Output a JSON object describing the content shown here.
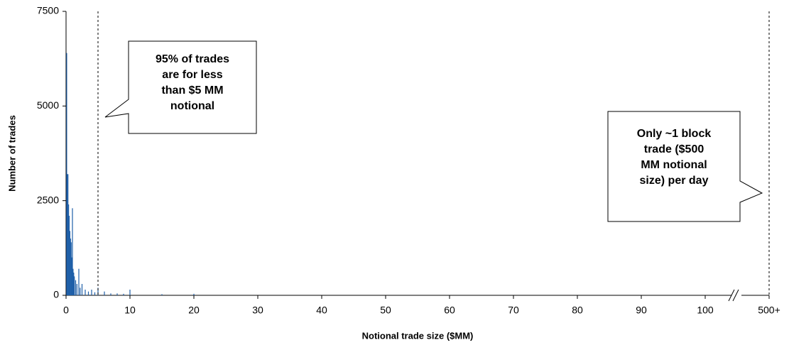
{
  "chart_data": {
    "type": "bar",
    "x_label": "Notional trade size ($MM)",
    "y_label": "Number of trades",
    "color": "#1f5fa8",
    "x": [
      0.1,
      0.2,
      0.3,
      0.4,
      0.5,
      0.6,
      0.7,
      0.8,
      0.9,
      1.0,
      1.1,
      1.2,
      1.3,
      1.5,
      1.7,
      2.0,
      2.2,
      2.5,
      3.0,
      3.5,
      4.0,
      4.5,
      5.0,
      6.0,
      7.0,
      8.0,
      9.0,
      10.0,
      15.0,
      20.0
    ],
    "values": [
      6400,
      3200,
      3200,
      2400,
      2100,
      1700,
      1500,
      1400,
      1000,
      2300,
      700,
      600,
      500,
      400,
      300,
      700,
      200,
      300,
      150,
      100,
      150,
      80,
      200,
      100,
      50,
      50,
      40,
      150,
      30,
      40
    ],
    "xlim": [
      0,
      110
    ],
    "ylim": [
      0,
      7500
    ],
    "xticks": [
      0,
      10,
      20,
      30,
      40,
      50,
      60,
      70,
      80,
      90,
      100,
      {
        "value": 110,
        "label": "500+"
      }
    ],
    "yticks": [
      0,
      2500,
      5000,
      7500
    ],
    "annotations": [
      {
        "x": 5,
        "lines": [
          "95% of trades",
          "are for less",
          "than $5 MM",
          "notional"
        ]
      },
      {
        "x": 110,
        "lines": [
          "Only ~1 block",
          "trade ($500",
          "MM notional",
          "size) per day"
        ]
      }
    ]
  }
}
